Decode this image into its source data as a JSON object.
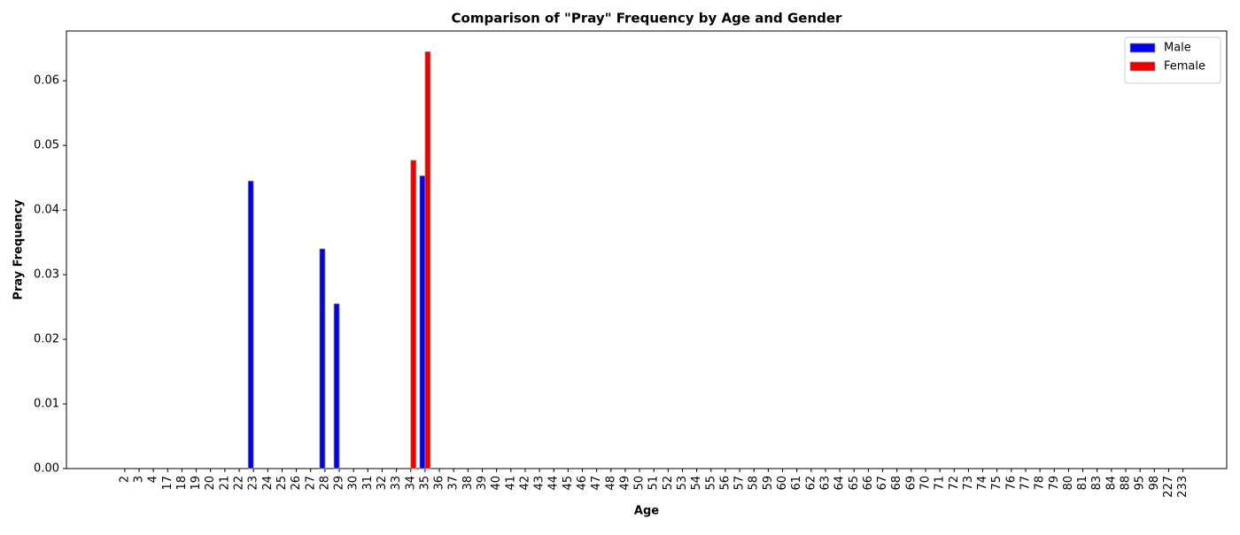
{
  "chart_data": {
    "type": "bar",
    "title": "Comparison of \"Pray\" Frequency by Age and Gender",
    "x_label": "Age",
    "y_label": "Pray Frequency",
    "categories": [
      "2",
      "3",
      "4",
      "17",
      "18",
      "19",
      "20",
      "21",
      "22",
      "23",
      "24",
      "25",
      "26",
      "27",
      "28",
      "29",
      "30",
      "31",
      "32",
      "33",
      "34",
      "35",
      "36",
      "37",
      "38",
      "39",
      "40",
      "41",
      "42",
      "43",
      "44",
      "45",
      "46",
      "47",
      "48",
      "49",
      "50",
      "51",
      "52",
      "53",
      "54",
      "55",
      "56",
      "57",
      "58",
      "59",
      "60",
      "61",
      "62",
      "63",
      "64",
      "65",
      "66",
      "67",
      "68",
      "69",
      "70",
      "71",
      "72",
      "73",
      "74",
      "75",
      "76",
      "77",
      "78",
      "79",
      "80",
      "81",
      "83",
      "84",
      "88",
      "95",
      "98",
      "227",
      "233"
    ],
    "series": [
      {
        "name": "Male",
        "color": "#0000ee",
        "values": [
          0,
          0,
          0,
          0,
          0,
          0,
          0,
          0,
          0,
          0.0445,
          0,
          0,
          0,
          0,
          0.034,
          0.0255,
          0,
          0,
          0,
          0,
          0,
          0.0453,
          0,
          0,
          0,
          0,
          0,
          0,
          0,
          0,
          0,
          0,
          0,
          0,
          0,
          0,
          0,
          0,
          0,
          0,
          0,
          0,
          0,
          0,
          0,
          0,
          0,
          0,
          0,
          0,
          0,
          0,
          0,
          0,
          0,
          0,
          0,
          0,
          0,
          0,
          0,
          0,
          0,
          0,
          0,
          0,
          0,
          0,
          0,
          0,
          0,
          0,
          0,
          0,
          0
        ]
      },
      {
        "name": "Female",
        "color": "#ee0000",
        "values": [
          0,
          0,
          0,
          0,
          0,
          0,
          0,
          0,
          0,
          0,
          0,
          0,
          0,
          0,
          0,
          0,
          0,
          0,
          0,
          0,
          0.0477,
          0.0645,
          0,
          0,
          0,
          0,
          0,
          0,
          0,
          0,
          0,
          0,
          0,
          0,
          0,
          0,
          0,
          0,
          0,
          0,
          0,
          0,
          0,
          0,
          0,
          0,
          0,
          0,
          0,
          0,
          0,
          0,
          0,
          0,
          0,
          0,
          0,
          0,
          0,
          0,
          0,
          0,
          0,
          0,
          0,
          0,
          0,
          0,
          0,
          0,
          0,
          0,
          0,
          0,
          0
        ]
      }
    ],
    "ylim": [
      0,
      0.0677
    ],
    "yticks": [
      {
        "value": 0,
        "label": "0.00"
      },
      {
        "value": 0.01,
        "label": "0.01"
      },
      {
        "value": 0.02,
        "label": "0.02"
      },
      {
        "value": 0.03,
        "label": "0.03"
      },
      {
        "value": 0.04,
        "label": "0.04"
      },
      {
        "value": 0.05,
        "label": "0.05"
      },
      {
        "value": 0.06,
        "label": "0.06"
      }
    ],
    "legend": "upper right"
  }
}
